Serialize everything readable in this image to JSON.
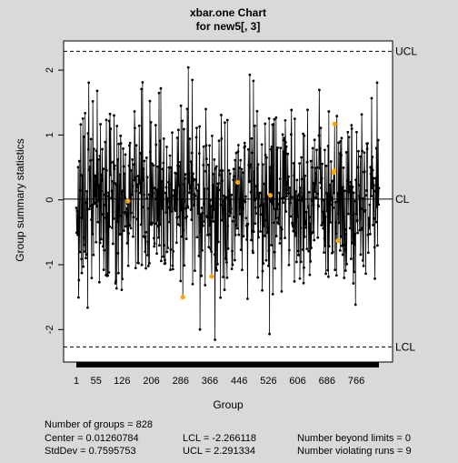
{
  "chart_data": {
    "type": "line",
    "title": "xbar.one Chart",
    "subtitle": "for new5[, 3]",
    "xlabel": "Group",
    "ylabel": "Group summary statistics",
    "n_groups": 828,
    "xlim": [
      1,
      828
    ],
    "ylim": [
      -2.5,
      2.45
    ],
    "y_ticks": [
      -2,
      -1,
      0,
      1,
      2
    ],
    "y_tick_labels": [
      "-2",
      "-1",
      "0",
      "1",
      "2"
    ],
    "x_ticks": [
      1,
      55,
      126,
      206,
      286,
      366,
      446,
      526,
      606,
      686,
      766
    ],
    "x_tick_labels": [
      "1",
      "55",
      "126",
      "206",
      "286",
      "366",
      "446",
      "526",
      "606",
      "686",
      "766"
    ],
    "center": 0.01260784,
    "ucl": 2.291334,
    "lcl": -2.266118,
    "limit_labels": {
      "ucl": "UCL",
      "cl": "CL",
      "lcl": "LCL"
    },
    "seed": 17,
    "line_color": "#000000",
    "point_color": "#000000",
    "violating_color": "#ffa500",
    "background_color": "#d9d9d9",
    "plot_background": "#ffffff",
    "violating_points": [
      {
        "x": 142,
        "y": -0.02
      },
      {
        "x": 292,
        "y": -1.5
      },
      {
        "x": 371,
        "y": -1.18
      },
      {
        "x": 442,
        "y": 0.27
      },
      {
        "x": 531,
        "y": 0.07
      },
      {
        "x": 706,
        "y": 0.45
      },
      {
        "x": 707,
        "y": 1.17
      },
      {
        "x": 716,
        "y": -0.63
      },
      {
        "x": 704,
        "y": 0.42
      }
    ]
  },
  "stats": {
    "groups": "Number of groups = 828",
    "center": "Center = 0.01260784",
    "stddev": "StdDev = 0.7595753",
    "lcl": "LCL = -2.266118",
    "ucl": "UCL = 2.291334",
    "beyond": "Number beyond limits = 0",
    "violating": "Number violating runs = 9"
  }
}
